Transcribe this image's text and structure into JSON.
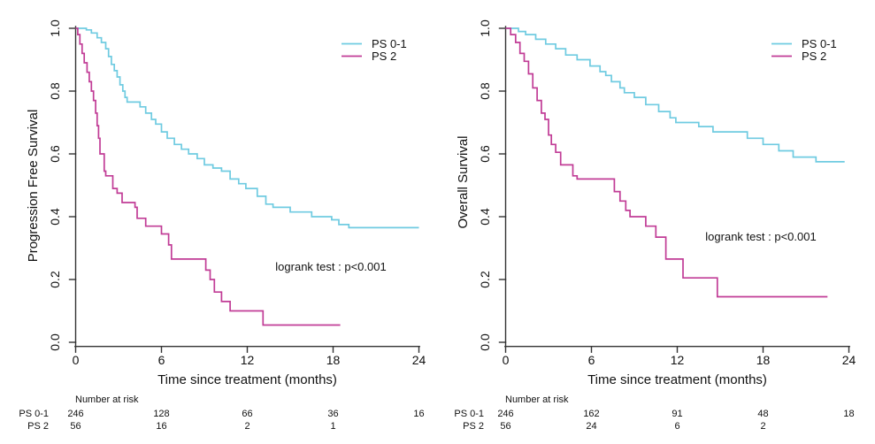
{
  "colors": {
    "ps01": "#6FCBE1",
    "ps2": "#C13C96",
    "axis": "#333333",
    "text": "#111111"
  },
  "chart_data": [
    {
      "type": "line",
      "subtype": "kaplan-meier-step",
      "title": "",
      "ylabel": "Progression Free Survival",
      "xlabel": "Time since treatment (months)",
      "xlim": [
        0,
        24
      ],
      "ylim": [
        0.0,
        1.0
      ],
      "x_ticks": [
        0,
        6,
        12,
        18,
        24
      ],
      "y_ticks": [
        "0.0",
        "0.2",
        "0.4",
        "0.6",
        "0.8",
        "1.0"
      ],
      "grid": "off",
      "legend_position": "top-right",
      "annotation": "logrank test : p<0.001",
      "legend": [
        {
          "label": "PS 0-1",
          "color_key": "ps01"
        },
        {
          "label": "PS 2",
          "color_key": "ps2"
        }
      ],
      "series": [
        {
          "name": "PS 0-1",
          "color_key": "ps01",
          "end_t": 24.0,
          "points": [
            [
              0,
              1.0
            ],
            [
              0.75,
              0.995
            ],
            [
              1.1,
              0.985
            ],
            [
              1.5,
              0.97
            ],
            [
              1.8,
              0.955
            ],
            [
              2.1,
              0.935
            ],
            [
              2.3,
              0.91
            ],
            [
              2.5,
              0.885
            ],
            [
              2.7,
              0.865
            ],
            [
              2.9,
              0.845
            ],
            [
              3.1,
              0.82
            ],
            [
              3.3,
              0.8
            ],
            [
              3.45,
              0.78
            ],
            [
              3.6,
              0.765
            ],
            [
              4.5,
              0.75
            ],
            [
              4.9,
              0.73
            ],
            [
              5.3,
              0.71
            ],
            [
              5.6,
              0.695
            ],
            [
              6.0,
              0.67
            ],
            [
              6.4,
              0.65
            ],
            [
              6.9,
              0.63
            ],
            [
              7.4,
              0.615
            ],
            [
              7.9,
              0.6
            ],
            [
              8.5,
              0.585
            ],
            [
              9.0,
              0.565
            ],
            [
              9.6,
              0.555
            ],
            [
              10.2,
              0.545
            ],
            [
              10.8,
              0.52
            ],
            [
              11.4,
              0.505
            ],
            [
              11.9,
              0.49
            ],
            [
              12.7,
              0.465
            ],
            [
              13.3,
              0.44
            ],
            [
              13.8,
              0.43
            ],
            [
              15.0,
              0.415
            ],
            [
              16.5,
              0.4
            ],
            [
              17.9,
              0.39
            ],
            [
              18.4,
              0.375
            ],
            [
              19.1,
              0.365
            ]
          ]
        },
        {
          "name": "PS 2",
          "color_key": "ps2",
          "end_t": 18.5,
          "points": [
            [
              0,
              1.0
            ],
            [
              0.15,
              0.98
            ],
            [
              0.3,
              0.95
            ],
            [
              0.45,
              0.92
            ],
            [
              0.6,
              0.89
            ],
            [
              0.8,
              0.86
            ],
            [
              0.95,
              0.83
            ],
            [
              1.1,
              0.8
            ],
            [
              1.25,
              0.77
            ],
            [
              1.4,
              0.73
            ],
            [
              1.5,
              0.69
            ],
            [
              1.6,
              0.65
            ],
            [
              1.7,
              0.6
            ],
            [
              2.0,
              0.545
            ],
            [
              2.1,
              0.53
            ],
            [
              2.6,
              0.49
            ],
            [
              2.9,
              0.475
            ],
            [
              3.25,
              0.445
            ],
            [
              4.15,
              0.43
            ],
            [
              4.3,
              0.395
            ],
            [
              4.9,
              0.37
            ],
            [
              6.0,
              0.345
            ],
            [
              6.5,
              0.31
            ],
            [
              6.7,
              0.265
            ],
            [
              9.1,
              0.23
            ],
            [
              9.4,
              0.2
            ],
            [
              9.7,
              0.16
            ],
            [
              10.2,
              0.13
            ],
            [
              10.8,
              0.1
            ],
            [
              13.1,
              0.055
            ]
          ]
        }
      ],
      "at_risk": {
        "header": "Number at risk",
        "rows": [
          {
            "label": "PS 0-1",
            "values": [
              246,
              128,
              66,
              36,
              16
            ]
          },
          {
            "label": "PS 2",
            "values": [
              56,
              16,
              2,
              1
            ]
          }
        ]
      }
    },
    {
      "type": "line",
      "subtype": "kaplan-meier-step",
      "title": "",
      "ylabel": "Overall Survival",
      "xlabel": "Time since treatment (months)",
      "xlim": [
        0,
        24
      ],
      "ylim": [
        0.0,
        1.0
      ],
      "x_ticks": [
        0,
        6,
        12,
        18,
        24
      ],
      "y_ticks": [
        "0.0",
        "0.2",
        "0.4",
        "0.6",
        "0.8",
        "1.0"
      ],
      "grid": "off",
      "legend_position": "top-right",
      "annotation": "logrank test : p<0.001",
      "legend": [
        {
          "label": "PS 0-1",
          "color_key": "ps01"
        },
        {
          "label": "PS 2",
          "color_key": "ps2"
        }
      ],
      "series": [
        {
          "name": "PS 0-1",
          "color_key": "ps01",
          "end_t": 23.7,
          "points": [
            [
              0,
              1.0
            ],
            [
              0.9,
              0.99
            ],
            [
              1.4,
              0.98
            ],
            [
              2.1,
              0.965
            ],
            [
              2.8,
              0.95
            ],
            [
              3.5,
              0.935
            ],
            [
              4.2,
              0.915
            ],
            [
              5.0,
              0.9
            ],
            [
              5.9,
              0.88
            ],
            [
              6.6,
              0.862
            ],
            [
              7.0,
              0.85
            ],
            [
              7.4,
              0.83
            ],
            [
              8.0,
              0.81
            ],
            [
              8.3,
              0.795
            ],
            [
              9.0,
              0.78
            ],
            [
              9.8,
              0.757
            ],
            [
              10.7,
              0.735
            ],
            [
              11.5,
              0.715
            ],
            [
              11.9,
              0.7
            ],
            [
              13.5,
              0.687
            ],
            [
              14.5,
              0.67
            ],
            [
              16.9,
              0.65
            ],
            [
              18.0,
              0.63
            ],
            [
              19.1,
              0.61
            ],
            [
              20.1,
              0.59
            ],
            [
              21.7,
              0.575
            ]
          ]
        },
        {
          "name": "PS 2",
          "color_key": "ps2",
          "end_t": 22.5,
          "points": [
            [
              0,
              1.0
            ],
            [
              0.35,
              0.98
            ],
            [
              0.7,
              0.955
            ],
            [
              1.0,
              0.92
            ],
            [
              1.3,
              0.895
            ],
            [
              1.6,
              0.855
            ],
            [
              1.9,
              0.81
            ],
            [
              2.2,
              0.77
            ],
            [
              2.5,
              0.73
            ],
            [
              2.75,
              0.71
            ],
            [
              3.0,
              0.66
            ],
            [
              3.2,
              0.63
            ],
            [
              3.5,
              0.605
            ],
            [
              3.85,
              0.565
            ],
            [
              4.7,
              0.53
            ],
            [
              5.0,
              0.52
            ],
            [
              7.6,
              0.48
            ],
            [
              8.0,
              0.45
            ],
            [
              8.4,
              0.42
            ],
            [
              8.7,
              0.4
            ],
            [
              9.8,
              0.37
            ],
            [
              10.5,
              0.335
            ],
            [
              11.2,
              0.265
            ],
            [
              12.4,
              0.205
            ],
            [
              14.8,
              0.145
            ]
          ]
        }
      ],
      "at_risk": {
        "header": "Number at risk",
        "rows": [
          {
            "label": "PS 0-1",
            "values": [
              246,
              162,
              91,
              48,
              18
            ]
          },
          {
            "label": "PS 2",
            "values": [
              56,
              24,
              6,
              2
            ]
          }
        ]
      }
    }
  ]
}
